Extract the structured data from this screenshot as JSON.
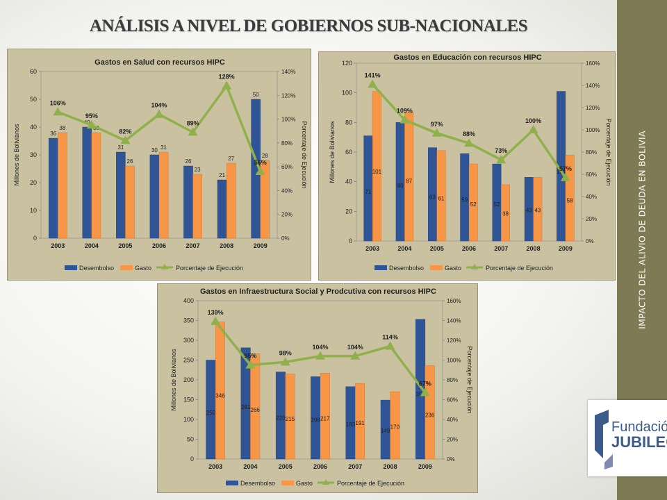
{
  "slide": {
    "title": "ANÁLISIS A NIVEL DE GOBIERNOS SUB-NACIONALES",
    "sidebar_text": "IMPACTO DEL ALIVIO DE DEUDA EN BOLIVIA",
    "logo_line1": "Fundación",
    "logo_line2": "JUBILEO"
  },
  "colors": {
    "desembolso": "#2f5597",
    "gasto": "#f79646",
    "porcentaje": "#8fb04a",
    "panel_bg": "#c9c1a0",
    "sidebar": "#7e7a53"
  },
  "chart_data": [
    {
      "type": "bar",
      "title": "Gastos en Salud con recursos HIPC",
      "ylabel": "Millones de Bolivianos",
      "y2label": "Porcentaje de Ejecución",
      "categories": [
        "2003",
        "2004",
        "2005",
        "2006",
        "2007",
        "2008",
        "2009"
      ],
      "series": [
        {
          "name": "Desembolso",
          "values": [
            36,
            40,
            31,
            30,
            26,
            21,
            50
          ]
        },
        {
          "name": "Gasto",
          "values": [
            38,
            38,
            26,
            31,
            23,
            27,
            28
          ]
        },
        {
          "name": "Porcentaje de Ejecución",
          "axis": "right",
          "values": [
            106,
            95,
            82,
            104,
            89,
            128,
            56
          ]
        }
      ],
      "bar_labels": {
        "Desembolso": [
          "36",
          "40",
          "31",
          "30",
          "26",
          "21",
          "50"
        ],
        "Gasto": [
          "38",
          "38",
          "26",
          "31",
          "23",
          "27",
          "28"
        ]
      },
      "line_labels": [
        "106%",
        "95%",
        "82%",
        "104%",
        "89%",
        "128%",
        "56%"
      ],
      "ylim": [
        0,
        60
      ],
      "yticks": [
        "0",
        "10",
        "20",
        "30",
        "40",
        "50",
        "60"
      ],
      "y2lim": [
        0,
        140
      ],
      "y2ticks": [
        "0%",
        "20%",
        "40%",
        "60%",
        "80%",
        "100%",
        "120%",
        "140%"
      ],
      "legend_position": "bottom",
      "grid": false
    },
    {
      "type": "bar",
      "title": "Gastos en Educación con recursos HIPC",
      "ylabel": "Millones de Bolivianos",
      "y2label": "Porcentaje de Ejecución",
      "categories": [
        "2003",
        "2004",
        "2005",
        "2006",
        "2007",
        "2008",
        "2009"
      ],
      "series": [
        {
          "name": "Desembolso",
          "values": [
            71,
            80,
            63,
            59,
            52,
            43,
            101
          ]
        },
        {
          "name": "Gasto",
          "values": [
            101,
            87,
            61,
            52,
            38,
            43,
            58
          ]
        },
        {
          "name": "Porcentaje de Ejecución",
          "axis": "right",
          "values": [
            141,
            109,
            97,
            88,
            73,
            100,
            57
          ]
        }
      ],
      "bar_labels": {
        "Desembolso": [
          "71",
          "80",
          "63",
          "59",
          "52",
          "43",
          "101"
        ],
        "Gasto": [
          "101",
          "87",
          "61",
          "52",
          "38",
          "43",
          "58"
        ]
      },
      "line_labels": [
        "141%",
        "109%",
        "97%",
        "88%",
        "73%",
        "100%",
        "57%"
      ],
      "ylim": [
        0,
        120
      ],
      "yticks": [
        "0",
        "20",
        "40",
        "60",
        "80",
        "100",
        "120"
      ],
      "y2lim": [
        0,
        160
      ],
      "y2ticks": [
        "0%",
        "20%",
        "40%",
        "60%",
        "80%",
        "100%",
        "120%",
        "140%",
        "160%"
      ],
      "legend_position": "bottom",
      "grid": false
    },
    {
      "type": "bar",
      "title": "Gastos en Infraestructura Social y Prodcutiva con recursos HIPC",
      "ylabel": "Millones de Bolivianos",
      "y2label": "Porcentaje de Ejecución",
      "categories": [
        "2003",
        "2004",
        "2005",
        "2006",
        "2007",
        "2008",
        "2009"
      ],
      "series": [
        {
          "name": "Desembolso",
          "values": [
            250,
            281,
            220,
            208,
            183,
            149,
            353
          ]
        },
        {
          "name": "Gasto",
          "values": [
            346,
            266,
            215,
            217,
            191,
            170,
            236
          ]
        },
        {
          "name": "Porcentaje de Ejecución",
          "axis": "right",
          "values": [
            139,
            95,
            98,
            104,
            104,
            114,
            67
          ]
        }
      ],
      "bar_labels": {
        "Desembolso": [
          "250",
          "281",
          "220",
          "208",
          "183",
          "149",
          "353"
        ],
        "Gasto": [
          "346",
          "266",
          "215",
          "217",
          "191",
          "170",
          "236"
        ]
      },
      "line_labels": [
        "139%",
        "95%",
        "98%",
        "104%",
        "104%",
        "114%",
        "67%"
      ],
      "ylim": [
        0,
        400
      ],
      "yticks": [
        "0",
        "50",
        "100",
        "150",
        "200",
        "250",
        "300",
        "350",
        "400"
      ],
      "y2lim": [
        0,
        160
      ],
      "y2ticks": [
        "0%",
        "20%",
        "40%",
        "60%",
        "80%",
        "100%",
        "120%",
        "140%",
        "160%"
      ],
      "legend_position": "bottom",
      "grid": false
    }
  ]
}
